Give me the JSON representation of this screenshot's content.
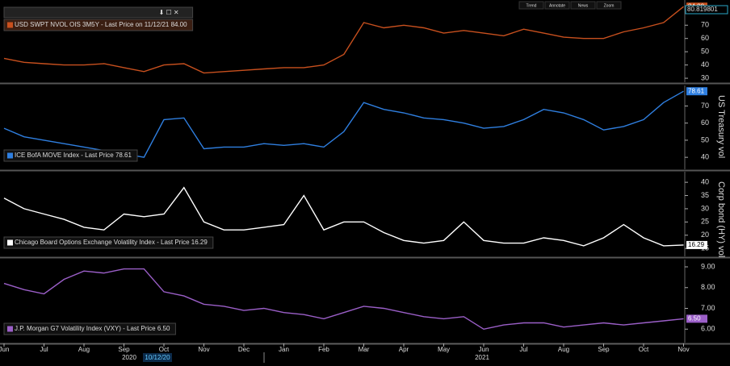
{
  "toolbar": [
    "Trend",
    "Annotate",
    "News",
    "Zoom"
  ],
  "x_axis": {
    "categories": [
      "Jun",
      "Jul",
      "Aug",
      "Sep",
      "Oct",
      "Nov",
      "Dec",
      "Jan",
      "Feb",
      "Mar",
      "Apr",
      "May",
      "Jun",
      "Jul",
      "Aug",
      "Sep",
      "Oct",
      "Nov"
    ],
    "years": [
      "2020",
      "2021"
    ],
    "cursor_label": "10/12/20"
  },
  "chart_data": [
    {
      "type": "line",
      "legend": "USD SWPT NVOL OIS 3M5Y - Last Price on 11/12/21 84.00",
      "color": "#c8501e",
      "values": [
        45,
        42,
        41,
        40,
        40,
        41,
        38,
        35,
        40,
        41,
        34,
        35,
        36,
        37,
        38,
        38,
        40,
        48,
        72,
        68,
        70,
        68,
        64,
        66,
        64,
        62,
        67,
        64,
        61,
        60,
        60,
        65,
        68,
        72,
        84
      ],
      "ylim": [
        27,
        89
      ],
      "yticks": [
        30,
        40,
        50,
        60,
        70
      ],
      "last_price_label": "84.00",
      "cursor_value": "80.819801"
    },
    {
      "type": "line",
      "legend": "ICE BofA MOVE Index - Last Price 78.61",
      "color": "#2f7fe0",
      "axis_title": "US Treasury vol",
      "values": [
        57,
        52,
        50,
        48,
        46,
        44,
        42,
        40,
        62,
        63,
        45,
        46,
        46,
        48,
        47,
        48,
        46,
        55,
        72,
        68,
        66,
        63,
        62,
        60,
        57,
        58,
        62,
        68,
        66,
        62,
        56,
        58,
        62,
        72,
        78.61
      ],
      "ylim": [
        33,
        82
      ],
      "yticks": [
        40,
        50,
        60,
        70
      ]
    },
    {
      "type": "line",
      "legend": "Chicago Board Options Exchange Volatility Index - Last Price 16.29",
      "color": "#ffffff",
      "axis_title": "Corp bond (HY) vol",
      "values": [
        34,
        30,
        28,
        26,
        23,
        22,
        28,
        27,
        28,
        38,
        25,
        22,
        22,
        23,
        24,
        35,
        22,
        25,
        25,
        21,
        18,
        17,
        18,
        25,
        18,
        17,
        17,
        19,
        18,
        16,
        19,
        24,
        19,
        16,
        16.29
      ],
      "ylim": [
        12,
        44
      ],
      "yticks": [
        15,
        20,
        25,
        30,
        35,
        40
      ]
    },
    {
      "type": "line",
      "legend": "J.P. Morgan G7 Volatility Index (VXY) - Last Price 6.50",
      "color": "#9b5fc8",
      "values": [
        8.2,
        7.9,
        7.7,
        8.4,
        8.8,
        8.7,
        8.9,
        8.9,
        7.8,
        7.6,
        7.2,
        7.1,
        6.9,
        7.0,
        6.8,
        6.7,
        6.5,
        6.8,
        7.1,
        7.0,
        6.8,
        6.6,
        6.5,
        6.6,
        6.0,
        6.2,
        6.3,
        6.3,
        6.1,
        6.2,
        6.3,
        6.2,
        6.3,
        6.4,
        6.5
      ],
      "ylim": [
        5.35,
        9.35
      ],
      "yticks": [
        {
          "value": 6,
          "label": "6.00"
        },
        {
          "value": 7,
          "label": "7.00"
        },
        {
          "value": 8,
          "label": "8.00"
        },
        {
          "value": 9,
          "label": "9.00"
        }
      ],
      "last_price_label": "6.50"
    }
  ]
}
